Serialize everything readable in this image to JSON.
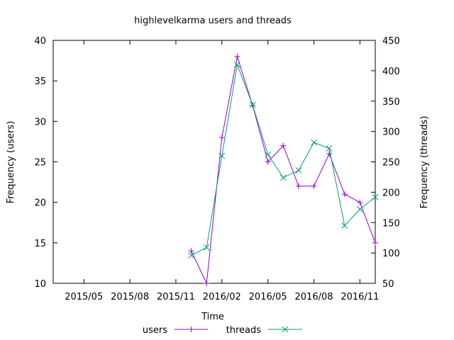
{
  "chart_data": {
    "type": "line",
    "title": "highlevelkarma users and threads",
    "xlabel": "Time",
    "ylabel": "Frequency (users)",
    "y2label": "Frequency (threads)",
    "x_ticks": [
      "2015/05",
      "2015/08",
      "2015/11",
      "2016/02",
      "2016/05",
      "2016/08",
      "2016/11"
    ],
    "y_ticks": [
      10,
      15,
      20,
      25,
      30,
      35,
      40
    ],
    "y2_ticks": [
      50,
      100,
      150,
      200,
      250,
      300,
      350,
      400,
      450
    ],
    "xlim": [
      "2015-03",
      "2016-12"
    ],
    "ylim": [
      10,
      40
    ],
    "y2lim": [
      50,
      450
    ],
    "legend_position": "bottom-center",
    "grid": false,
    "series": [
      {
        "name": "users",
        "axis": "left",
        "color": "#9400d3",
        "marker": "plus",
        "points": [
          {
            "x": "2015-12",
            "y": 14
          },
          {
            "x": "2016-01",
            "y": 10
          },
          {
            "x": "2016-02",
            "y": 28
          },
          {
            "x": "2016-03",
            "y": 38
          },
          {
            "x": "2016-04",
            "y": 32
          },
          {
            "x": "2016-05",
            "y": 25
          },
          {
            "x": "2016-06",
            "y": 27
          },
          {
            "x": "2016-07",
            "y": 22
          },
          {
            "x": "2016-08",
            "y": 22
          },
          {
            "x": "2016-09",
            "y": 26
          },
          {
            "x": "2016-10",
            "y": 21
          },
          {
            "x": "2016-11",
            "y": 20
          },
          {
            "x": "2016-12",
            "y": 15
          }
        ]
      },
      {
        "name": "threads",
        "axis": "right",
        "color": "#009e73",
        "marker": "cross",
        "points": [
          {
            "x": "2015-12",
            "y": 96
          },
          {
            "x": "2016-01",
            "y": 109
          },
          {
            "x": "2016-02",
            "y": 260
          },
          {
            "x": "2016-03",
            "y": 410
          },
          {
            "x": "2016-04",
            "y": 344
          },
          {
            "x": "2016-05",
            "y": 262
          },
          {
            "x": "2016-06",
            "y": 224
          },
          {
            "x": "2016-07",
            "y": 236
          },
          {
            "x": "2016-08",
            "y": 282
          },
          {
            "x": "2016-09",
            "y": 272
          },
          {
            "x": "2016-10",
            "y": 145
          },
          {
            "x": "2016-11",
            "y": 172
          },
          {
            "x": "2016-12",
            "y": 192
          }
        ]
      }
    ]
  }
}
